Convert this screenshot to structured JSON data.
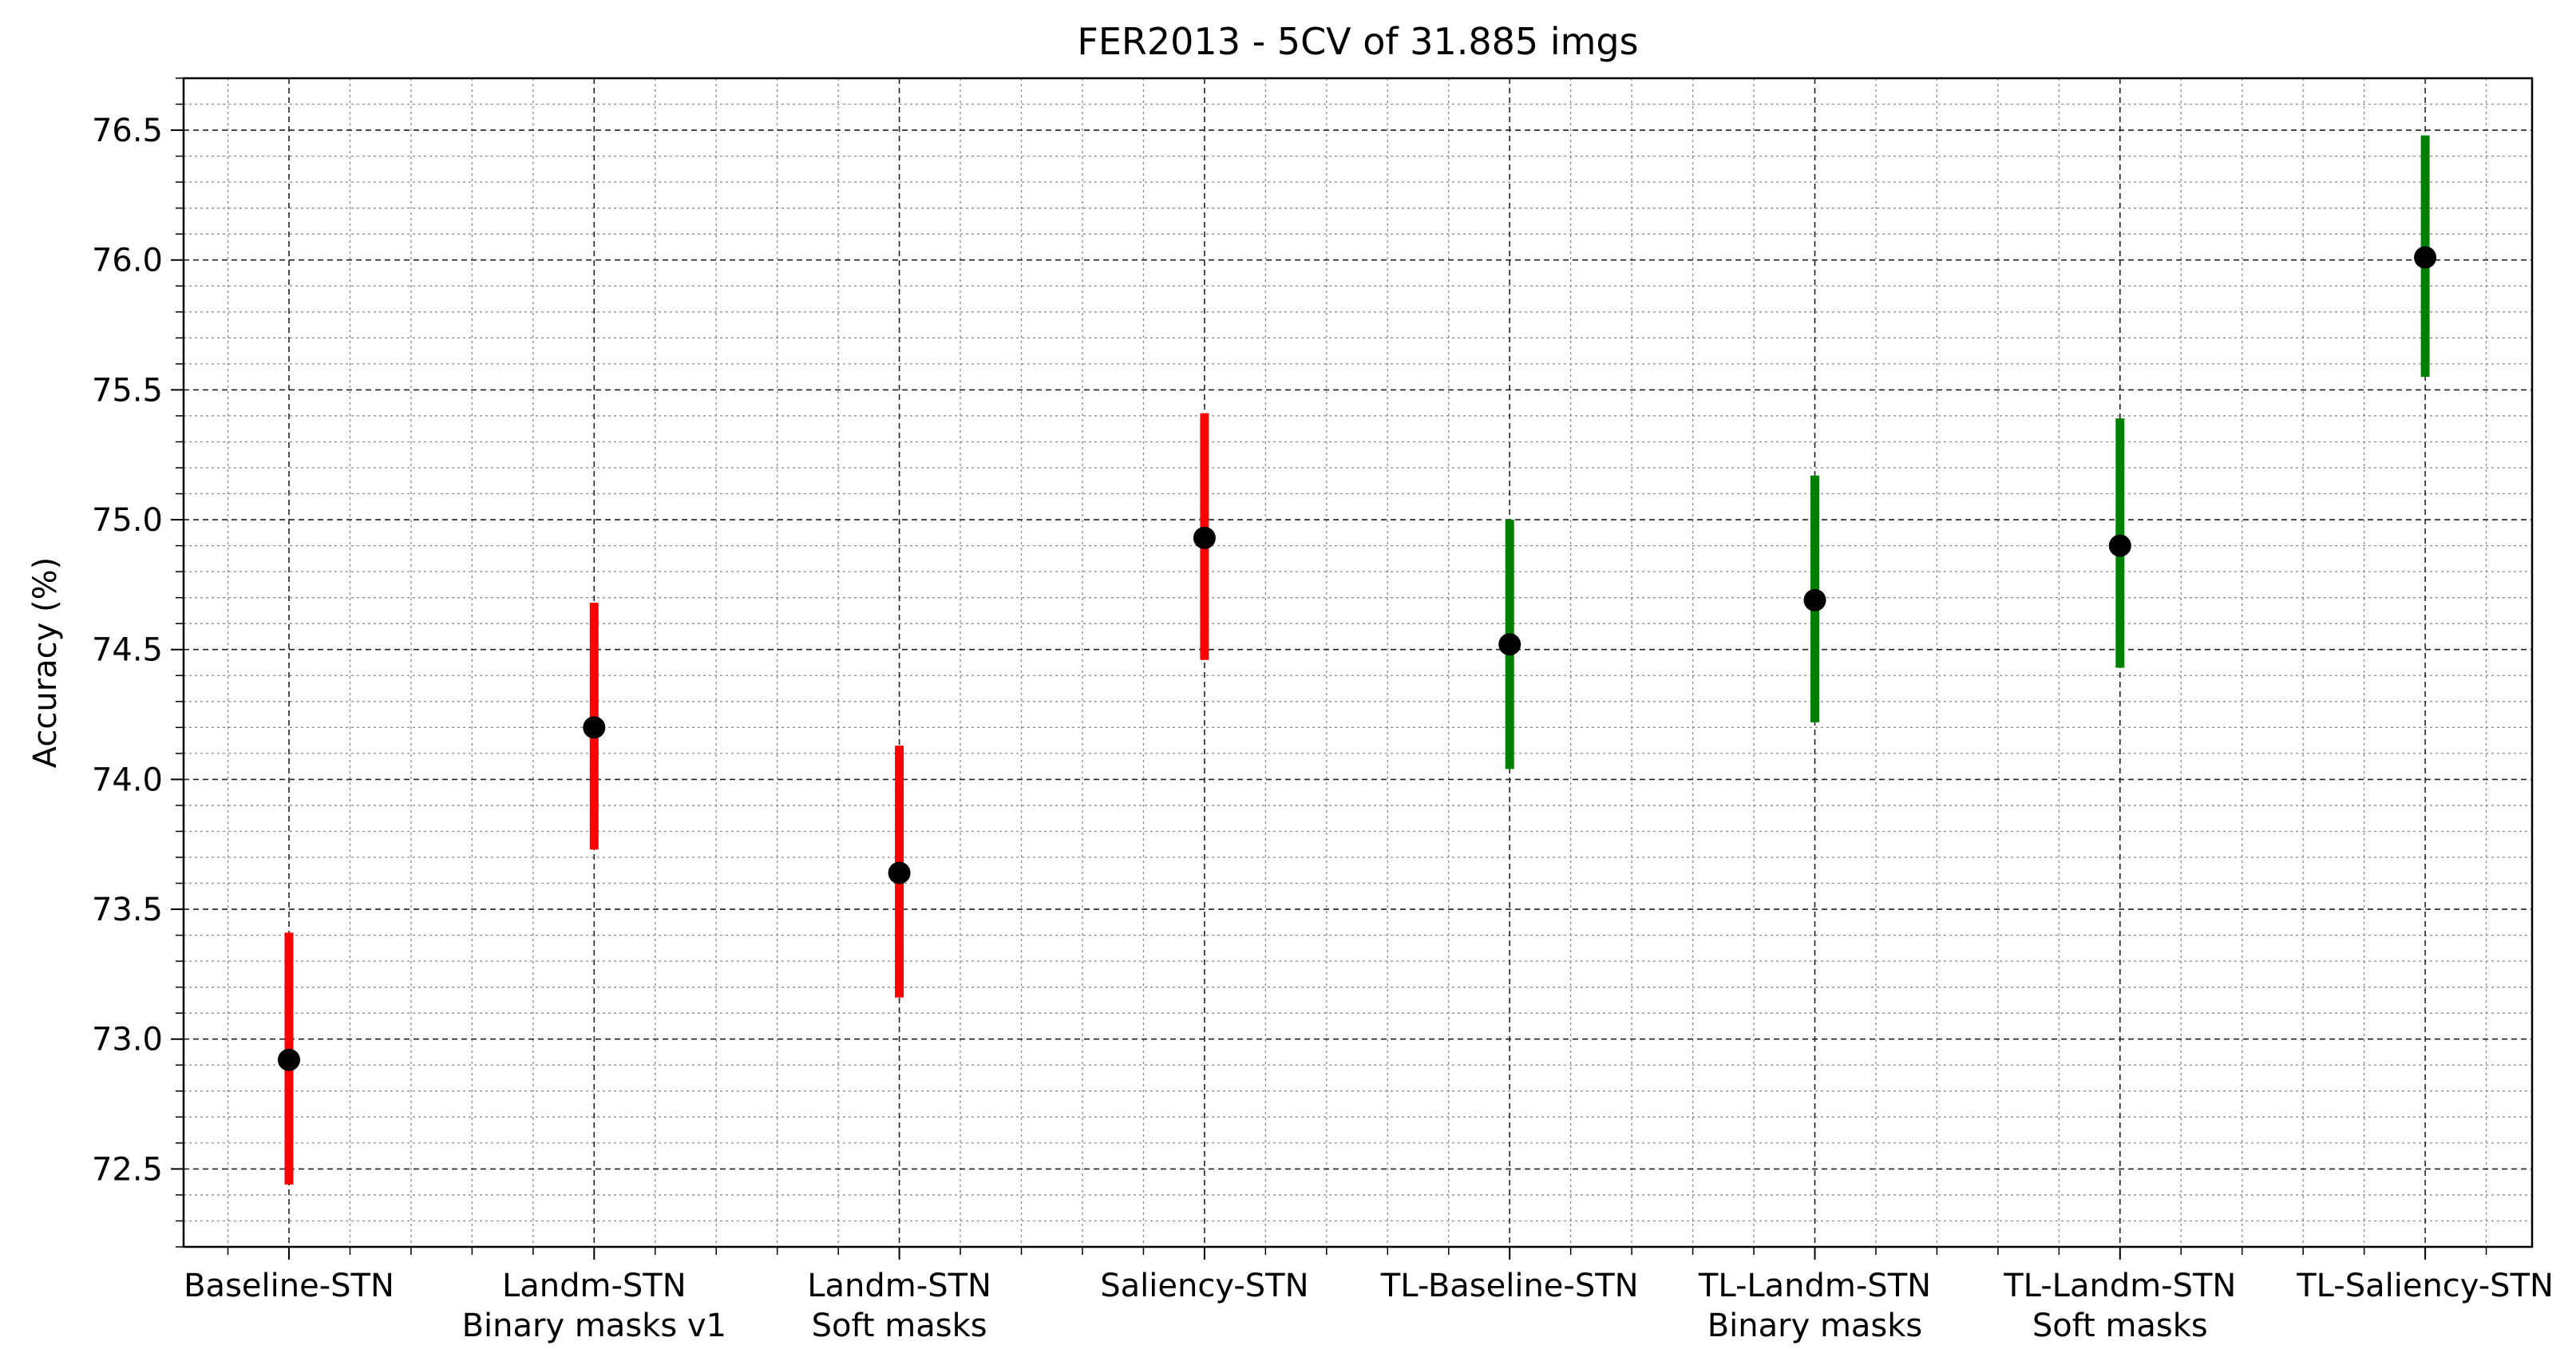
{
  "chart_data": {
    "type": "errorbar",
    "title": "FER2013 - 5CV of 31.885 imgs",
    "xlabel": "",
    "ylabel": "Accuracy (%)",
    "ylim": [
      72.2,
      76.7
    ],
    "yticks": [
      "72.5",
      "73.0",
      "73.5",
      "74.0",
      "74.5",
      "75.0",
      "75.5",
      "76.0",
      "76.5"
    ],
    "categories": [
      [
        "Baseline-STN"
      ],
      [
        "Landm-STN",
        "Binary masks v1"
      ],
      [
        "Landm-STN",
        "Soft masks"
      ],
      [
        "Saliency-STN"
      ],
      [
        "TL-Baseline-STN"
      ],
      [
        "TL-Landm-STN",
        "Binary masks"
      ],
      [
        "TL-Landm-STN",
        "Soft masks"
      ],
      [
        "TL-Saliency-STN"
      ]
    ],
    "mean": [
      72.92,
      74.2,
      73.64,
      74.93,
      74.52,
      74.69,
      74.9,
      76.01
    ],
    "err_low": [
      72.44,
      73.73,
      73.16,
      74.46,
      74.04,
      74.22,
      74.43,
      75.55
    ],
    "err_high": [
      73.41,
      74.68,
      74.13,
      75.41,
      75.0,
      75.17,
      75.39,
      76.48
    ],
    "bar_colors": [
      "#ff0000",
      "#ff0000",
      "#ff0000",
      "#ff0000",
      "#008000",
      "#008000",
      "#008000",
      "#008000"
    ],
    "marker_color": "#000000",
    "grid": "major and minor, dashed",
    "legend": "none"
  }
}
